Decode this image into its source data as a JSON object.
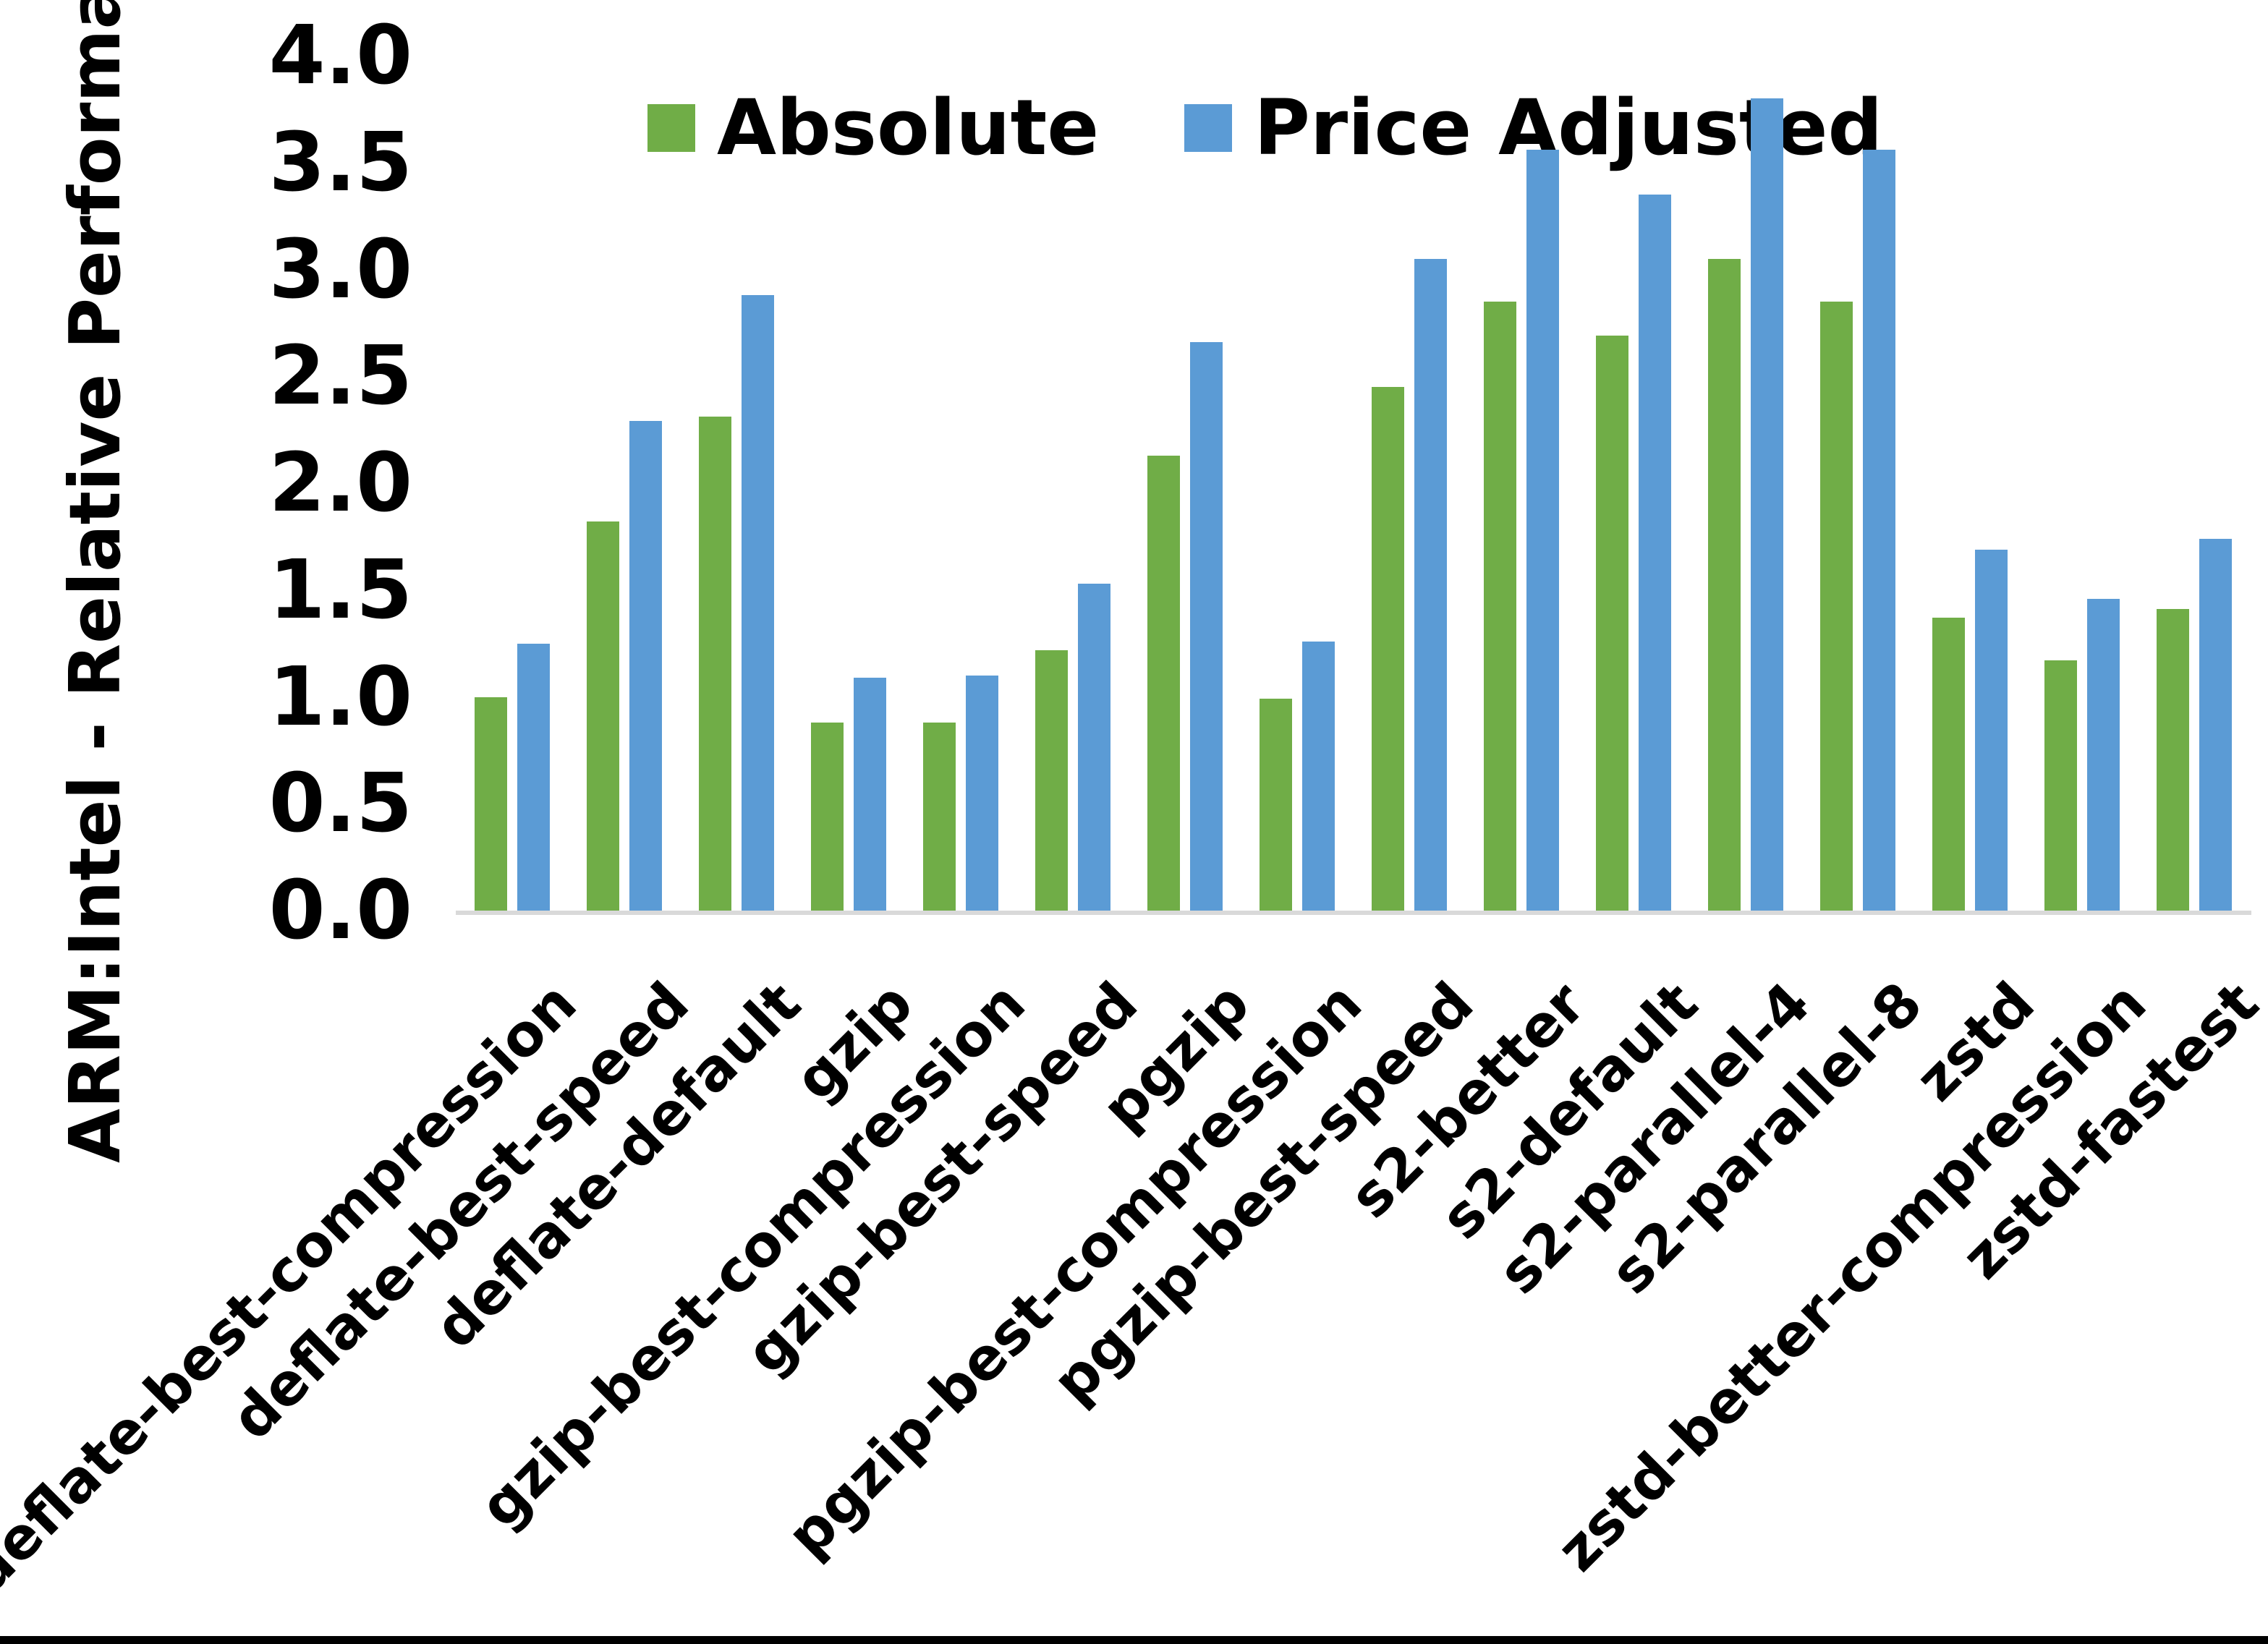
{
  "page": {
    "background": "#ffffff",
    "bottom_border_color": "#000000"
  },
  "chart_data": {
    "type": "bar",
    "title": "",
    "ylabel": "ARM:Intel - Relative Performance",
    "xlabel": "",
    "ylim": [
      0.0,
      4.0
    ],
    "ytick_step": 0.5,
    "ytick_labels": [
      "0.0",
      "0.5",
      "1.0",
      "1.5",
      "2.0",
      "2.5",
      "3.0",
      "3.5",
      "4.0"
    ],
    "grid": false,
    "legend_position": "top-center",
    "axis_line_color": "#D9D9D9",
    "categories": [
      "deflate-best-compression",
      "deflate-best-speed",
      "deflate-default",
      "gzip",
      "gzip-best-compression",
      "gzip-best-speed",
      "pgzip",
      "pgzip-best-compression",
      "pgzip-best-speed",
      "s2-better",
      "s2-default",
      "s2-parallel-4",
      "s2-parallel-8",
      "zstd",
      "zstd-better-compression",
      "zstd-fastest"
    ],
    "series": [
      {
        "name": "Absolute",
        "color": "#70AD47",
        "values": [
          1.0,
          1.82,
          2.31,
          0.88,
          0.88,
          1.22,
          2.13,
          0.99,
          2.45,
          2.85,
          2.69,
          3.05,
          2.85,
          1.37,
          1.17,
          1.41
        ]
      },
      {
        "name": "Price Adjusted",
        "color": "#5B9BD5",
        "values": [
          1.25,
          2.29,
          2.88,
          1.09,
          1.1,
          1.53,
          2.66,
          1.26,
          3.05,
          3.56,
          3.35,
          3.8,
          3.56,
          1.69,
          1.46,
          1.74
        ]
      }
    ]
  }
}
